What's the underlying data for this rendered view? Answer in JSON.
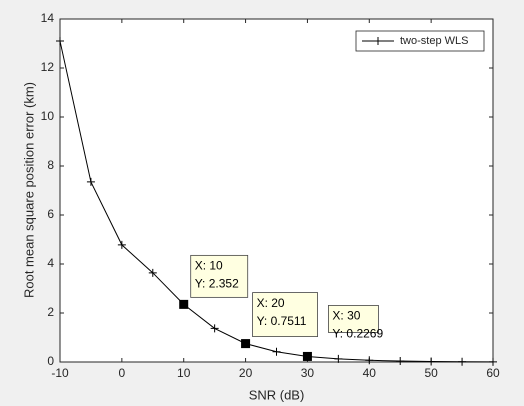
{
  "chart_data": {
    "type": "line",
    "xlabel": "SNR (dB)",
    "ylabel": "Root mean square position error (km)",
    "x": [
      -10,
      -5,
      0,
      5,
      10,
      15,
      20,
      25,
      30,
      35,
      40,
      45,
      50,
      55,
      60
    ],
    "series": [
      {
        "name": "two-step WLS",
        "color": "#000000",
        "values": [
          13.1,
          7.35,
          4.78,
          3.64,
          2.352,
          1.37,
          0.7511,
          0.42,
          0.2269,
          0.13,
          0.07,
          0.04,
          0.02,
          0.01,
          0.005
        ]
      }
    ],
    "xlim": [
      -10,
      60
    ],
    "xticks": [
      -10,
      0,
      10,
      20,
      30,
      40,
      50,
      60
    ],
    "ylim": [
      0,
      14
    ],
    "yticks": [
      0,
      2,
      4,
      6,
      8,
      10,
      12,
      14
    ],
    "legend": "northeast",
    "datatips": [
      {
        "x": 10,
        "y": 2.352,
        "lines": [
          "X: 10",
          "Y: 2.352"
        ]
      },
      {
        "x": 20,
        "y": 0.7511,
        "lines": [
          "X: 20",
          "Y: 0.7511"
        ]
      },
      {
        "x": 30,
        "y": 0.2269,
        "lines": [
          "X: 30",
          "Y: 0.2269"
        ]
      }
    ]
  }
}
